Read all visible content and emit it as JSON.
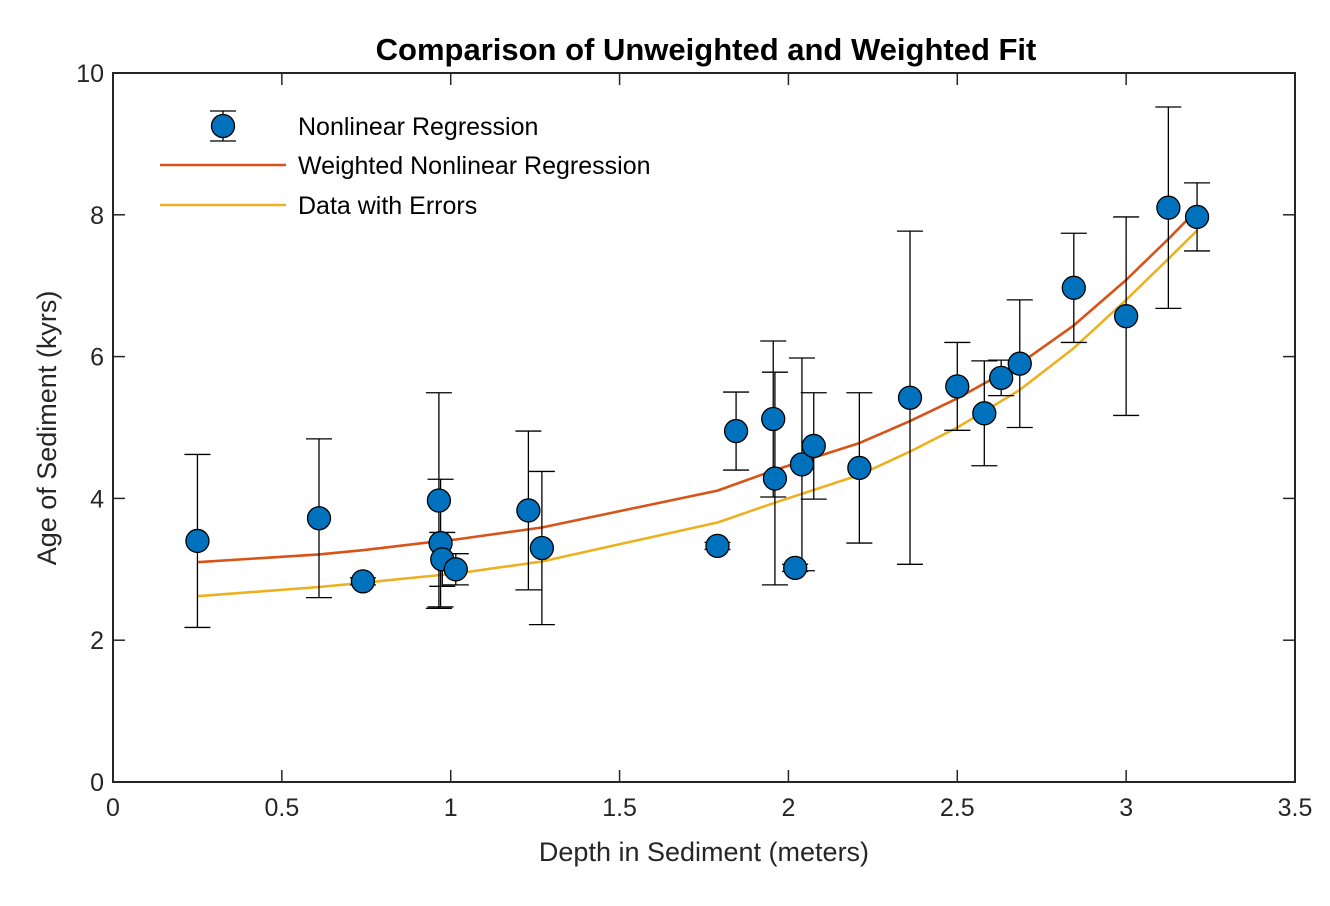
{
  "chart_data": {
    "type": "scatter",
    "title": "Comparison of Unweighted and Weighted Fit",
    "xlabel": "Depth in Sediment (meters)",
    "ylabel": "Age of Sediment (kyrs)",
    "xlim": [
      0,
      3.5
    ],
    "ylim": [
      0,
      10
    ],
    "xticks": [
      0,
      0.5,
      1,
      1.5,
      2,
      2.5,
      3,
      3.5
    ],
    "xtick_labels": [
      "0",
      "0.5",
      "1",
      "1.5",
      "2",
      "2.5",
      "3",
      "3.5"
    ],
    "yticks": [
      0,
      2,
      4,
      6,
      8,
      10
    ],
    "ytick_labels": [
      "0",
      "2",
      "4",
      "6",
      "8",
      "10"
    ],
    "grid": false,
    "legend_position": "top-left",
    "legend": [
      {
        "label": "Nonlinear Regression",
        "marker": "circle-errorbar",
        "color": "#0072BD"
      },
      {
        "label": "Weighted Nonlinear Regression",
        "marker": "line",
        "color": "#D95319"
      },
      {
        "label": "Data with Errors",
        "marker": "line",
        "color": "#EDB120"
      }
    ],
    "points": [
      {
        "x": 0.25,
        "y": 3.4,
        "err": 1.22
      },
      {
        "x": 0.61,
        "y": 3.72,
        "err": 1.12
      },
      {
        "x": 0.74,
        "y": 2.83,
        "err": 0.05
      },
      {
        "x": 0.965,
        "y": 3.97,
        "err": 1.52
      },
      {
        "x": 0.97,
        "y": 3.37,
        "err": 0.9
      },
      {
        "x": 0.975,
        "y": 3.14,
        "err": 0.38
      },
      {
        "x": 1.015,
        "y": 3.0,
        "err": 0.22
      },
      {
        "x": 1.23,
        "y": 3.83,
        "err": 1.12
      },
      {
        "x": 1.27,
        "y": 3.3,
        "err": 1.08
      },
      {
        "x": 1.79,
        "y": 3.33,
        "err": 0.05
      },
      {
        "x": 1.845,
        "y": 4.95,
        "err": 0.55
      },
      {
        "x": 1.955,
        "y": 5.12,
        "err": 1.1
      },
      {
        "x": 1.96,
        "y": 4.28,
        "err": 1.5
      },
      {
        "x": 2.02,
        "y": 3.02,
        "err": 0.05
      },
      {
        "x": 2.04,
        "y": 4.48,
        "err": 1.5
      },
      {
        "x": 2.075,
        "y": 4.74,
        "err": 0.75
      },
      {
        "x": 2.21,
        "y": 4.43,
        "err": 1.06
      },
      {
        "x": 2.36,
        "y": 5.42,
        "err": 2.35
      },
      {
        "x": 2.5,
        "y": 5.58,
        "err": 0.62
      },
      {
        "x": 2.58,
        "y": 5.2,
        "err": 0.74
      },
      {
        "x": 2.63,
        "y": 5.7,
        "err": 0.25
      },
      {
        "x": 2.685,
        "y": 5.9,
        "err": 0.9
      },
      {
        "x": 2.845,
        "y": 6.97,
        "err": 0.77
      },
      {
        "x": 3.0,
        "y": 6.57,
        "err": 1.4
      },
      {
        "x": 3.125,
        "y": 8.1,
        "err": 1.42
      },
      {
        "x": 3.21,
        "y": 7.97,
        "err": 0.48
      }
    ],
    "series": [
      {
        "name": "Weighted Nonlinear Regression",
        "color": "#D95319",
        "x": [
          0.25,
          0.61,
          0.74,
          0.97,
          1.015,
          1.27,
          1.79,
          1.96,
          2.21,
          2.36,
          2.5,
          2.685,
          2.845,
          3.0,
          3.125,
          3.21
        ],
        "y": [
          3.1,
          3.21,
          3.27,
          3.4,
          3.42,
          3.59,
          4.11,
          4.4,
          4.78,
          5.09,
          5.41,
          5.9,
          6.44,
          7.08,
          7.66,
          8.07
        ]
      },
      {
        "name": "Data with Errors",
        "color": "#EDB120",
        "x": [
          0.25,
          0.61,
          0.74,
          0.97,
          1.015,
          1.27,
          1.79,
          1.96,
          2.21,
          2.36,
          2.5,
          2.685,
          2.845,
          3.0,
          3.125,
          3.21
        ],
        "y": [
          2.62,
          2.75,
          2.81,
          2.92,
          2.94,
          3.11,
          3.66,
          3.94,
          4.33,
          4.66,
          5.0,
          5.53,
          6.12,
          6.8,
          7.38,
          7.78
        ]
      }
    ]
  }
}
